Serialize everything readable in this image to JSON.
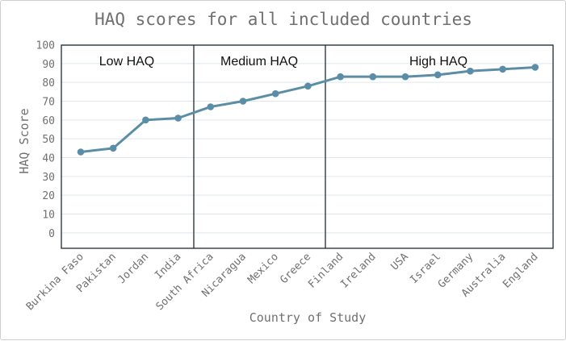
{
  "chart_data": {
    "type": "line",
    "title": "HAQ scores for all included countries",
    "xlabel": "Country of Study",
    "ylabel": "HAQ Score",
    "ylim": [
      -8,
      100
    ],
    "yticks": [
      0,
      10,
      20,
      30,
      40,
      50,
      60,
      70,
      80,
      90,
      100
    ],
    "grid": true,
    "categories": [
      "Burkina Faso",
      "Pakistan",
      "Jordan",
      "India",
      "South Africa",
      "Nicaragua",
      "Mexico",
      "Greece",
      "Finland",
      "Ireland",
      "USA",
      "Israel",
      "Germany",
      "Australia",
      "England"
    ],
    "values": [
      43,
      45,
      60,
      61,
      67,
      70,
      74,
      78,
      83,
      83,
      83,
      84,
      86,
      87,
      88
    ],
    "regions": [
      {
        "label": "Low HAQ"
      },
      {
        "label": "Medium HAQ"
      },
      {
        "label": "High HAQ"
      }
    ],
    "colors": {
      "line": "#5b8ea6",
      "grid": "#dfe6ec",
      "text": "#707070",
      "frame": "#1d2b33"
    }
  }
}
